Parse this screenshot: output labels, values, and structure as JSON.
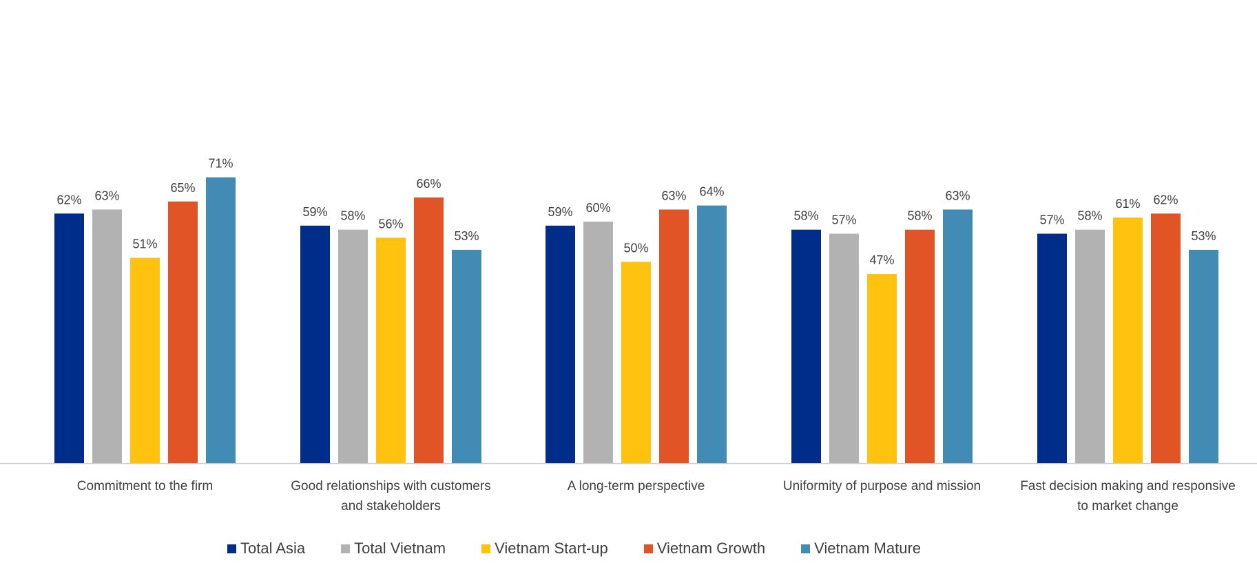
{
  "chart_data": {
    "type": "bar",
    "categories": [
      [
        "Commitment to the firm"
      ],
      [
        "Good relationships with customers",
        "and stakeholders"
      ],
      [
        "A long-term perspective"
      ],
      [
        "Uniformity of purpose and mission"
      ],
      [
        "Fast decision making and responsive",
        "to market change"
      ]
    ],
    "series": [
      {
        "name": "Total Asia",
        "color": "#002D8A",
        "values": [
          62,
          59,
          59,
          58,
          57
        ],
        "labels": [
          "62%",
          "59%",
          "59%",
          "58%",
          "57%"
        ]
      },
      {
        "name": "Total Vietnam",
        "color": "#B2B2B2",
        "values": [
          63,
          58,
          60,
          57,
          58
        ],
        "labels": [
          "63%",
          "58%",
          "60%",
          "57%",
          "58%"
        ]
      },
      {
        "name": "Vietnam Start-up",
        "color": "#FFC20E",
        "values": [
          51,
          56,
          50,
          47,
          61
        ],
        "labels": [
          "51%",
          "56%",
          "50%",
          "47%",
          "61%"
        ]
      },
      {
        "name": "Vietnam Growth",
        "color": "#E05426",
        "values": [
          65,
          66,
          63,
          58,
          62
        ],
        "labels": [
          "65%",
          "66%",
          "63%",
          "58%",
          "62%"
        ]
      },
      {
        "name": "Vietnam Mature",
        "color": "#428BB5",
        "values": [
          71,
          53,
          64,
          63,
          53
        ],
        "labels": [
          "71%",
          "53%",
          "64%",
          "63%",
          "53%"
        ]
      }
    ],
    "ylim": [
      0,
      100
    ],
    "grid": false,
    "legend_position": "bottom",
    "title": "",
    "xlabel": "",
    "ylabel": ""
  }
}
